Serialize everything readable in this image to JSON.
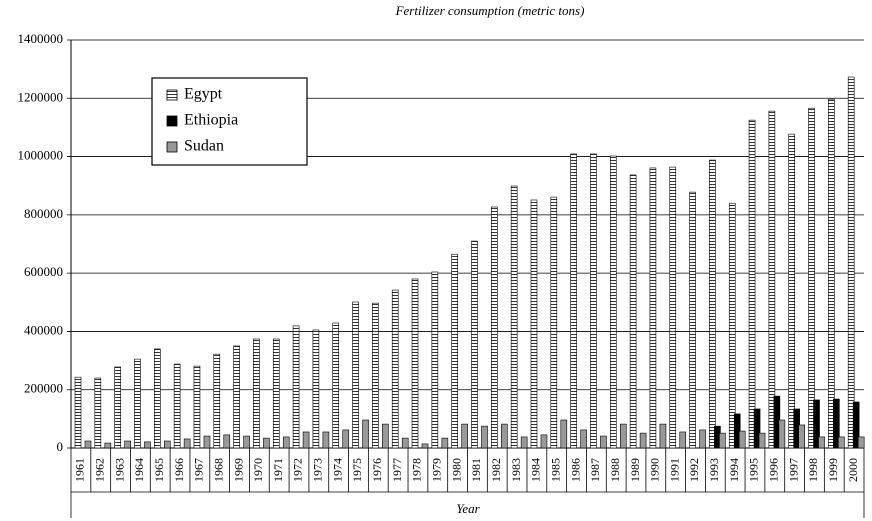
{
  "chart_data": {
    "type": "bar",
    "title": "Fertilizer consumption (metric tons)",
    "x_label": "Year",
    "categories": [
      "1961",
      "1962",
      "1963",
      "1964",
      "1965",
      "1966",
      "1967",
      "1968",
      "1969",
      "1970",
      "1971",
      "1972",
      "1973",
      "1974",
      "1975",
      "1976",
      "1977",
      "1978",
      "1979",
      "1980",
      "1981",
      "1982",
      "1983",
      "1984",
      "1985",
      "1986",
      "1987",
      "1988",
      "1989",
      "1990",
      "1991",
      "1992",
      "1993",
      "1994",
      "1995",
      "1996",
      "1997",
      "1998",
      "1999",
      "2000"
    ],
    "series": [
      {
        "name": "Egypt",
        "color": "#ffffff",
        "pattern": "horizontal-lines",
        "values": [
          243000,
          240000,
          278000,
          305000,
          340000,
          288000,
          281000,
          322000,
          350000,
          374000,
          374000,
          419000,
          405000,
          429000,
          501000,
          497000,
          542000,
          580000,
          604000,
          665000,
          710000,
          827000,
          899000,
          851000,
          861000,
          1009000,
          1009000,
          1002000,
          937000,
          961000,
          964000,
          878000,
          988000,
          840000,
          1125000,
          1156000,
          1077000,
          1166000,
          1197000,
          1273000
        ]
      },
      {
        "name": "Ethiopia",
        "color": "#000000",
        "values": [
          0,
          0,
          0,
          0,
          0,
          0,
          0,
          0,
          0,
          0,
          0,
          0,
          0,
          0,
          0,
          0,
          0,
          0,
          0,
          0,
          0,
          0,
          0,
          0,
          0,
          0,
          0,
          0,
          0,
          0,
          0,
          0,
          75000,
          117000,
          134000,
          178000,
          134000,
          165000,
          168000,
          158000
        ]
      },
      {
        "name": "Sudan",
        "color": "#999999",
        "values": [
          24000,
          17000,
          24000,
          21000,
          24000,
          31000,
          41000,
          45000,
          41000,
          34000,
          38000,
          55000,
          55000,
          62000,
          96000,
          82000,
          34000,
          14000,
          34000,
          82000,
          75000,
          82000,
          38000,
          45000,
          96000,
          62000,
          41000,
          82000,
          51000,
          82000,
          55000,
          62000,
          51000,
          58000,
          51000,
          96000,
          79000,
          38000,
          38000,
          38000
        ]
      }
    ],
    "ylim": [
      0,
      1400000
    ],
    "yticks": [
      0,
      200000,
      400000,
      600000,
      800000,
      1000000,
      1200000,
      1400000
    ],
    "grid": true,
    "legend": "upper left"
  }
}
